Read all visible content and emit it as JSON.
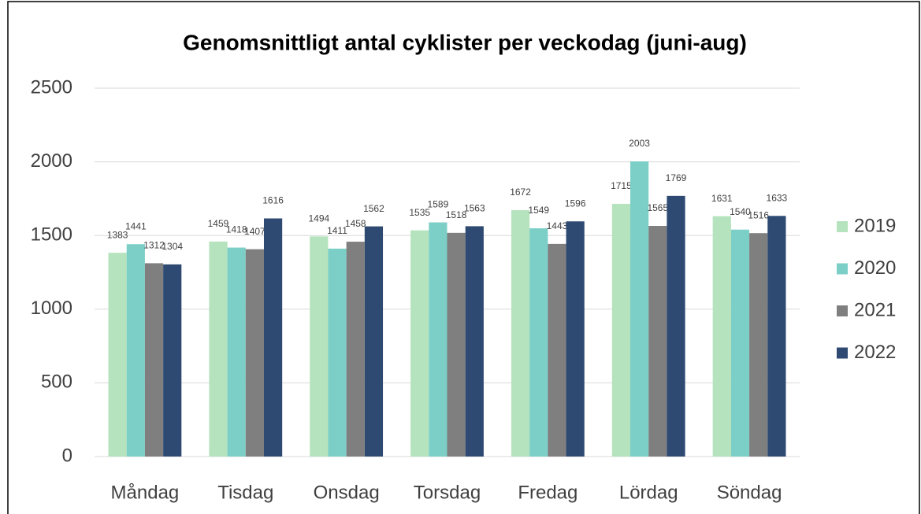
{
  "chart_data": {
    "type": "bar",
    "title": "Genomsnittligt antal cyklister per veckodag (juni-aug)",
    "categories": [
      "Måndag",
      "Tisdag",
      "Onsdag",
      "Torsdag",
      "Fredag",
      "Lördag",
      "Söndag"
    ],
    "series": [
      {
        "name": "2019",
        "color": "#b5e3bd",
        "values": [
          1383,
          1459,
          1494,
          1535,
          1672,
          1715,
          1631
        ]
      },
      {
        "name": "2020",
        "color": "#7ccfc7",
        "values": [
          1441,
          1418,
          1411,
          1589,
          1549,
          2003,
          1540
        ]
      },
      {
        "name": "2021",
        "color": "#7f7f7f",
        "values": [
          1312,
          1407,
          1458,
          1518,
          1443,
          1565,
          1516
        ]
      },
      {
        "name": "2022",
        "color": "#2e4a72",
        "values": [
          1304,
          1616,
          1562,
          1563,
          1596,
          1769,
          1633
        ]
      }
    ],
    "ylim": [
      0,
      2500
    ],
    "yticks": [
      0,
      500,
      1000,
      1500,
      2000,
      2500
    ],
    "grid": true,
    "legend": "right"
  }
}
